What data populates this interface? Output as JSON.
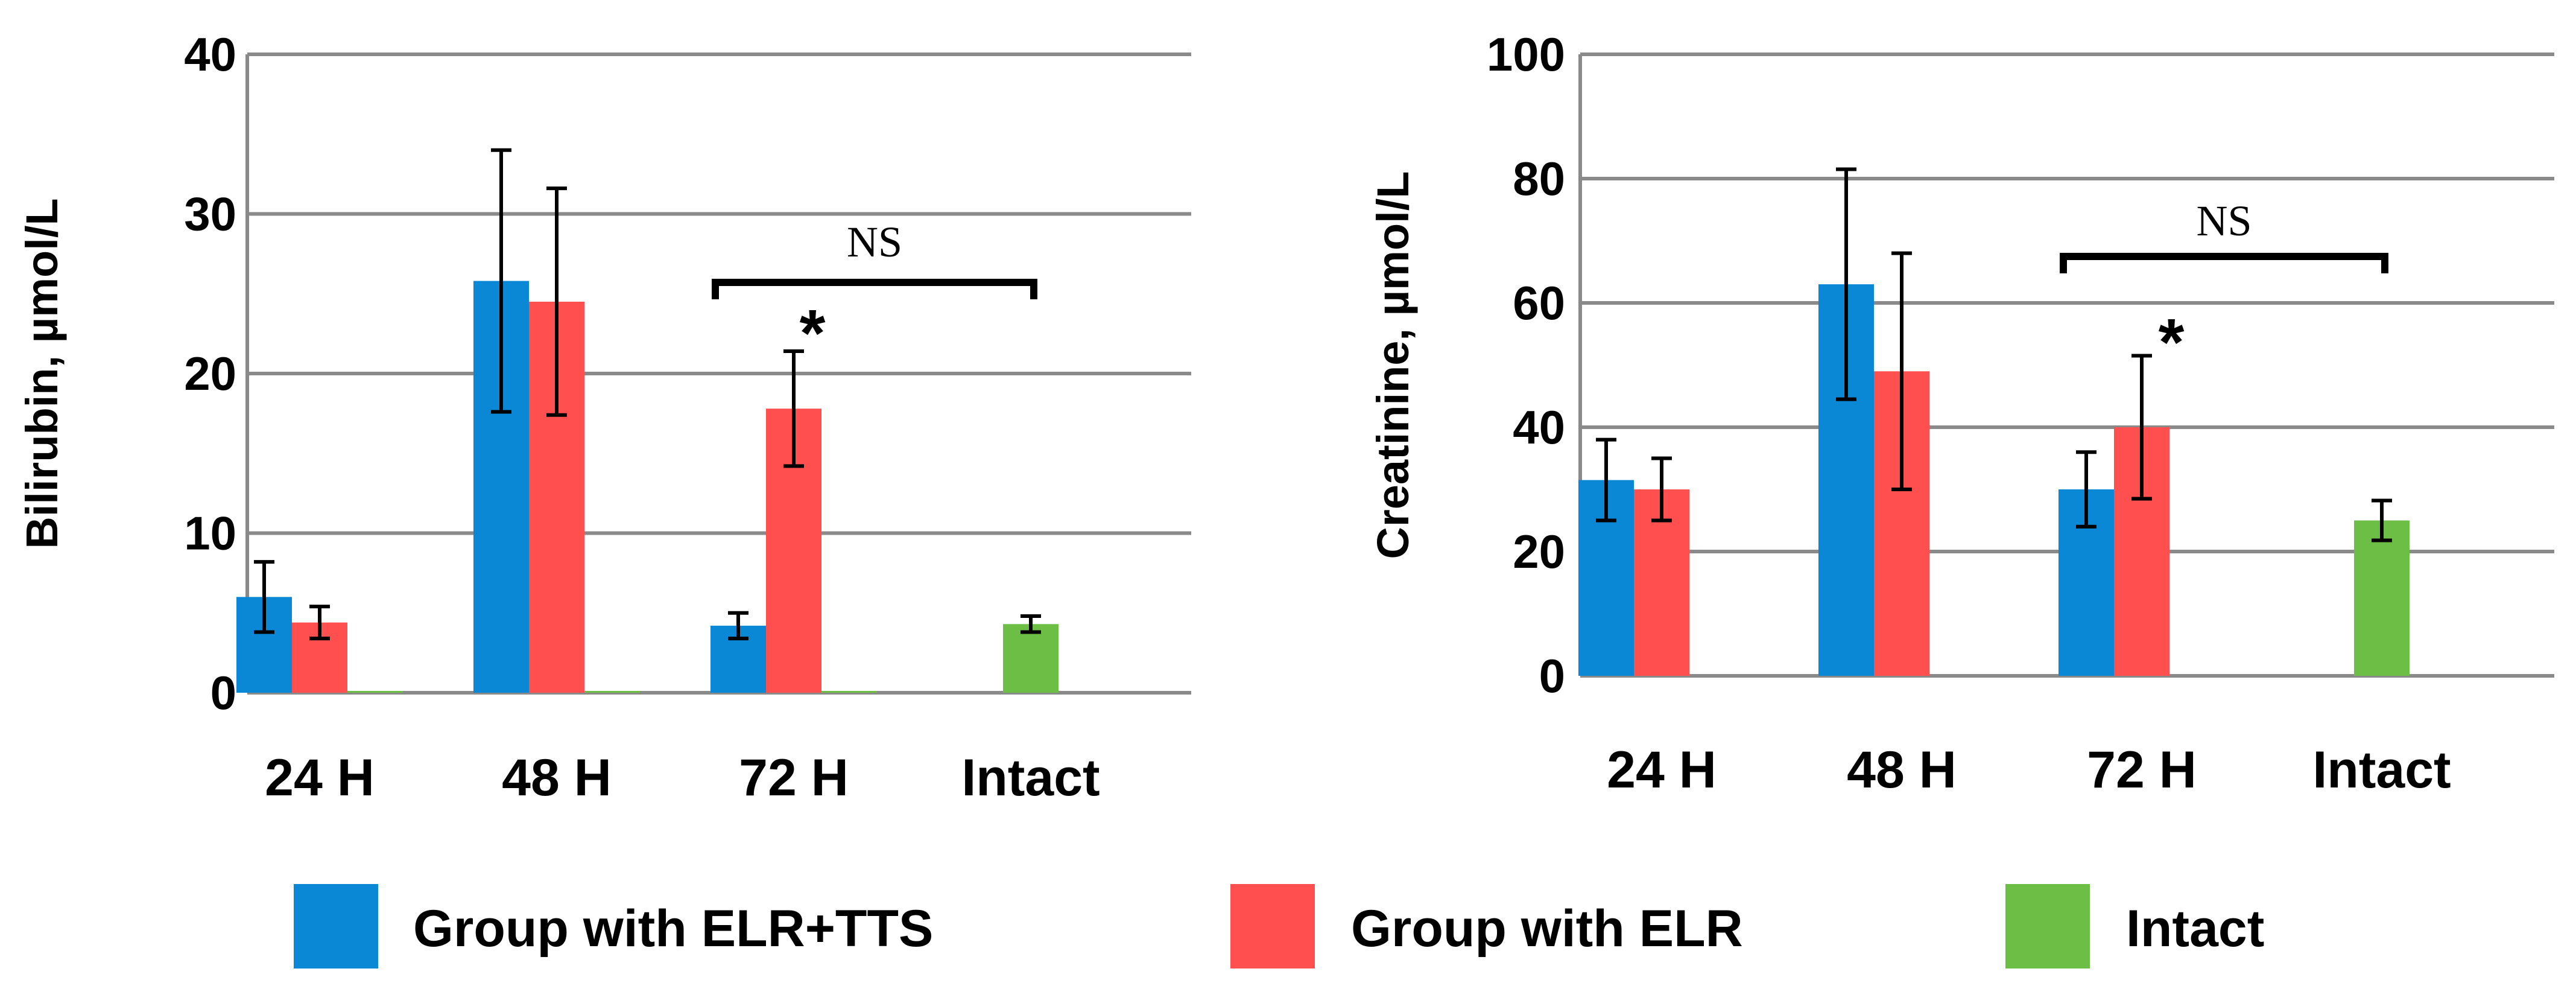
{
  "chart_data": [
    {
      "type": "bar",
      "ylabel": "Bilirubin, µmol/L",
      "ylim": [
        0,
        40
      ],
      "yticks": [
        0,
        10,
        20,
        30,
        40
      ],
      "grid": true,
      "categories": [
        "24 H",
        "48 H",
        "72 H",
        "Intact"
      ],
      "series": [
        {
          "name": "Group with ELR+TTS",
          "color": "#0A88D6",
          "values": [
            6.0,
            25.8,
            4.2,
            null
          ],
          "errors": [
            2.2,
            8.2,
            0.8,
            null
          ]
        },
        {
          "name": "Group with ELR",
          "color": "#FF4F4F",
          "values": [
            4.4,
            24.5,
            17.8,
            null
          ],
          "errors": [
            1.0,
            7.1,
            3.6,
            null
          ]
        },
        {
          "name": "Intact",
          "color": "#6DBE45",
          "values": [
            0.1,
            0.1,
            0.1,
            4.3
          ],
          "errors": [
            null,
            null,
            null,
            0.5
          ]
        }
      ],
      "annotations": {
        "bracket_label": "NS",
        "star": "*",
        "star_category": "72 H"
      }
    },
    {
      "type": "bar",
      "ylabel": "Creatinine, µmol/L",
      "ylim": [
        0,
        100
      ],
      "yticks": [
        0,
        20,
        40,
        60,
        80,
        100
      ],
      "grid": true,
      "categories": [
        "24 H",
        "48 H",
        "72 H",
        "Intact"
      ],
      "series": [
        {
          "name": "Group with ELR+TTS",
          "color": "#0A88D6",
          "values": [
            31.5,
            63.0,
            30.0,
            null
          ],
          "errors": [
            6.5,
            18.5,
            6.0,
            null
          ]
        },
        {
          "name": "Group with ELR",
          "color": "#FF4F4F",
          "values": [
            30.0,
            49.0,
            40.0,
            null
          ],
          "errors": [
            5.0,
            19.0,
            11.5,
            null
          ]
        },
        {
          "name": "Intact",
          "color": "#6DBE45",
          "values": [
            null,
            null,
            null,
            25.0
          ],
          "errors": [
            null,
            null,
            null,
            3.2
          ]
        }
      ],
      "annotations": {
        "bracket_label": "NS",
        "star": "*",
        "star_category": "72 H"
      }
    }
  ],
  "legend": {
    "position": "bottom",
    "items": [
      {
        "label": "Group with ELR+TTS",
        "color": "#0A88D6"
      },
      {
        "label": "Group with ELR",
        "color": "#FF4F4F"
      },
      {
        "label": "Intact",
        "color": "#6DBE45"
      }
    ]
  }
}
